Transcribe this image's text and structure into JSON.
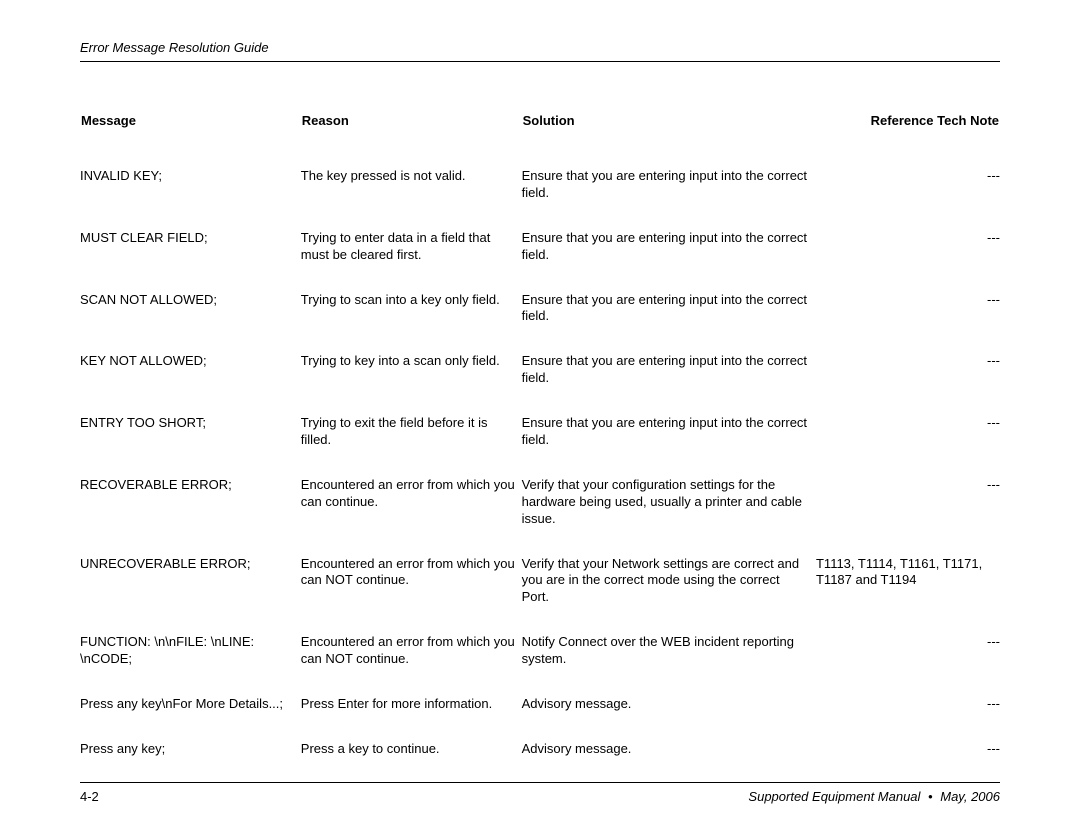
{
  "header": {
    "title": "Error Message Resolution Guide"
  },
  "table": {
    "columns": [
      "Message",
      "Reason",
      "Solution",
      "Reference Tech Note"
    ],
    "rows": [
      {
        "message": "INVALID KEY;",
        "reason": "The key pressed is not valid.",
        "solution": "Ensure that you are entering input into the correct field.",
        "ref": "---"
      },
      {
        "message": "MUST CLEAR FIELD;",
        "reason": "Trying to enter data in a field that must be cleared first.",
        "solution": "Ensure that you are entering input into the correct field.",
        "ref": "---"
      },
      {
        "message": "SCAN NOT ALLOWED;",
        "reason": "Trying to scan into a key only field.",
        "solution": "Ensure that you are entering input into the correct field.",
        "ref": "---"
      },
      {
        "message": "KEY NOT ALLOWED;",
        "reason": "Trying to key into a scan only field.",
        "solution": "Ensure that you are entering input into the correct field.",
        "ref": "---"
      },
      {
        "message": "ENTRY TOO SHORT;",
        "reason": "Trying to exit the field before it is filled.",
        "solution": "Ensure that you are entering input into the correct field.",
        "ref": "---"
      },
      {
        "message": "RECOVERABLE ERROR;",
        "reason": "Encountered an error from which you can continue.",
        "solution": "Verify that your configuration settings for the hardware being used, usually a printer and cable issue.",
        "ref": "---"
      },
      {
        "message": "UNRECOVERABLE ERROR;",
        "reason": "Encountered an error from which you can NOT continue.",
        "solution": "Verify that your Network settings are correct and you are in the correct mode using the correct Port.",
        "ref": "T1113, T1114, T1161, T1171, T1187 and T1194"
      },
      {
        "message": "FUNCTION: \\n\\nFILE: \\nLINE: \\nCODE;",
        "reason": "Encountered an error from which you can NOT continue.",
        "solution": "Notify Connect over the WEB incident reporting system.",
        "ref": "---"
      },
      {
        "message": "Press any key\\nFor More Details...;",
        "reason": "Press Enter for more information.",
        "solution": "Advisory message.",
        "ref": "---"
      },
      {
        "message": "Press any key;",
        "reason": "Press a key to continue.",
        "solution": "Advisory message.",
        "ref": "---"
      }
    ]
  },
  "footer": {
    "page": "4-2",
    "manual": "Supported Equipment Manual",
    "date": "May, 2006"
  }
}
